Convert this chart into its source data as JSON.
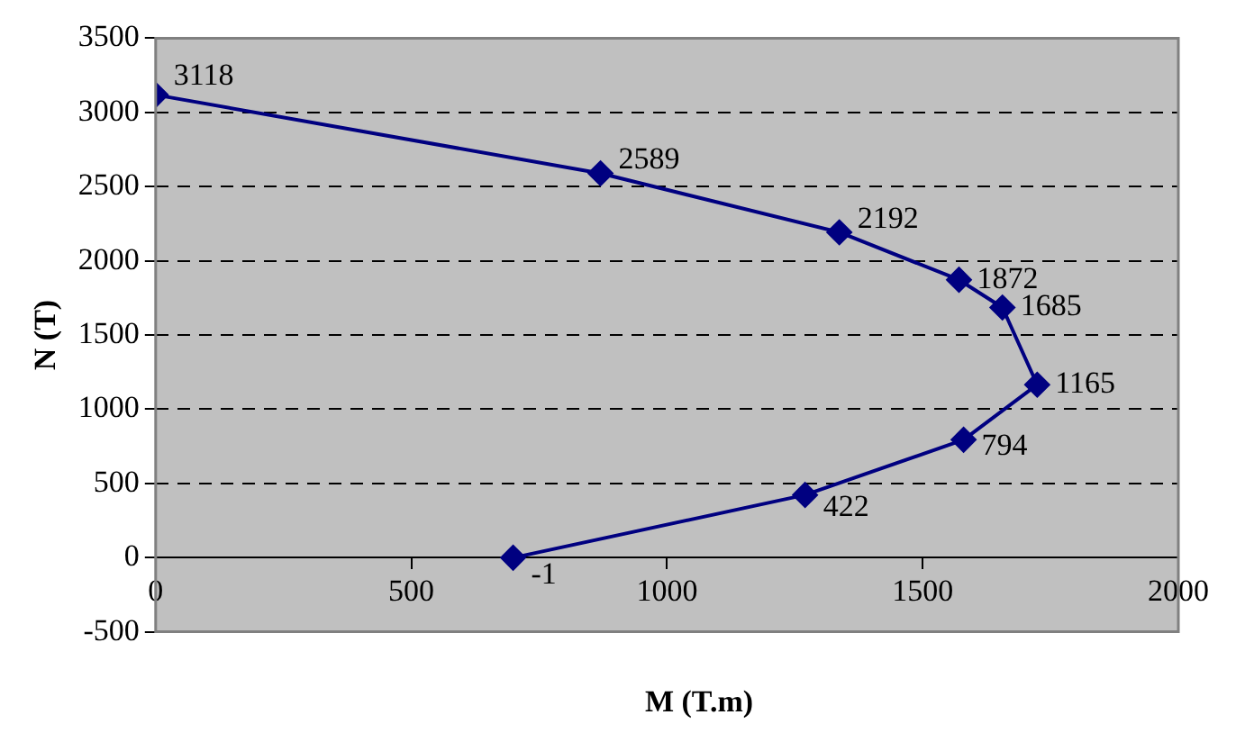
{
  "chart_data": {
    "type": "line",
    "xlabel": "M (T.m)",
    "ylabel": "N (T)",
    "x": [
      0,
      870,
      1337,
      1571,
      1656,
      1724,
      1580,
      1270,
      699
    ],
    "series": [
      {
        "color": "#000080",
        "values": [
          3118,
          2589,
          2192,
          1872,
          1685,
          1165,
          794,
          422,
          -1
        ]
      }
    ],
    "xlim": [
      0,
      2000
    ],
    "xticks": [
      0,
      500,
      1000,
      1500,
      2000
    ],
    "ylim": [
      -500,
      3500
    ],
    "yticks": [
      -500,
      0,
      500,
      1000,
      1500,
      2000,
      2500,
      3000,
      3500
    ],
    "grid": "y",
    "marker": "diamond",
    "line_style": "solid",
    "data_labels": true,
    "legend": false
  }
}
